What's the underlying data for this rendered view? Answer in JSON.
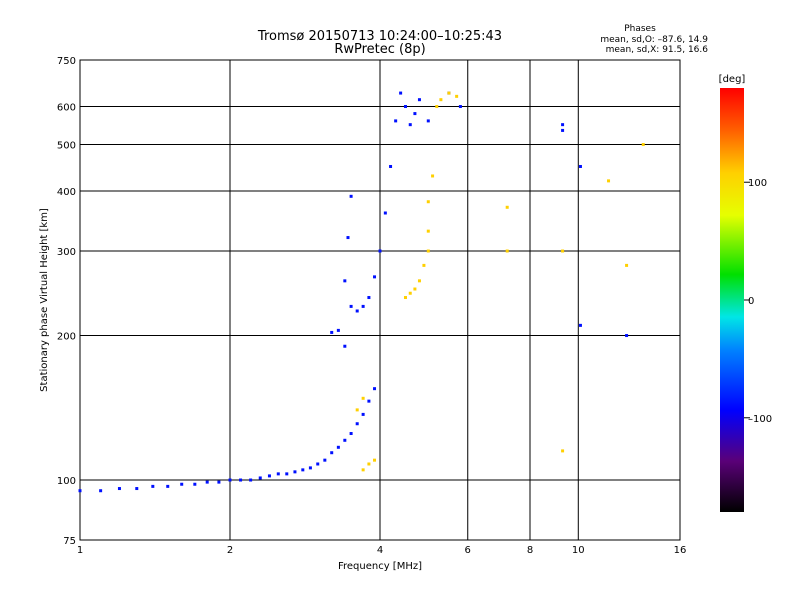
{
  "chart_data": {
    "type": "scatter",
    "title": "Tromsø 20150713 10:24:00–10:25:43",
    "subtitle": "RwPretec (8p)",
    "stats": {
      "heading": "Phases",
      "line1": "mean, sd,O: –87.6, 14.9",
      "line2": "mean, sd,X:  91.5, 16.6"
    },
    "xlabel": "Frequency [MHz]",
    "ylabel": "Stationary phase Virtual Height [km]",
    "xscale": "log",
    "yscale": "log",
    "xlim": [
      1,
      16
    ],
    "ylim": [
      75,
      750
    ],
    "xticks": [
      1,
      2,
      4,
      6,
      8,
      10,
      16
    ],
    "xtick_labels": [
      "1",
      "2",
      "4",
      "6",
      "8",
      "10",
      "16"
    ],
    "yticks": [
      75,
      100,
      200,
      300,
      400,
      500,
      600,
      750
    ],
    "ytick_labels": [
      "75",
      "100",
      "200",
      "300",
      "400",
      "500",
      "600",
      "750"
    ],
    "grid": true,
    "colorbar": {
      "label": "[deg]",
      "range": [
        -180,
        180
      ],
      "ticks": [
        100,
        0,
        -100
      ],
      "tick_labels": [
        "100",
        "0",
        "–100"
      ]
    },
    "series": [
      {
        "mode": "O",
        "phase_deg": -95,
        "points": [
          [
            1.0,
            95
          ],
          [
            1.1,
            95
          ],
          [
            1.2,
            96
          ],
          [
            1.3,
            96
          ],
          [
            1.4,
            97
          ],
          [
            1.5,
            97
          ],
          [
            1.6,
            98
          ],
          [
            1.7,
            98
          ],
          [
            1.8,
            99
          ],
          [
            1.9,
            99
          ],
          [
            2.0,
            100
          ],
          [
            2.1,
            100
          ],
          [
            2.2,
            100
          ],
          [
            2.3,
            101
          ],
          [
            2.4,
            102
          ],
          [
            2.5,
            103
          ],
          [
            2.6,
            103
          ],
          [
            2.7,
            104
          ],
          [
            2.8,
            105
          ],
          [
            2.9,
            106
          ],
          [
            3.0,
            108
          ],
          [
            3.1,
            110
          ],
          [
            3.2,
            114
          ],
          [
            3.3,
            117
          ],
          [
            3.4,
            121
          ],
          [
            3.5,
            125
          ],
          [
            3.6,
            131
          ],
          [
            3.7,
            137
          ],
          [
            3.8,
            146
          ],
          [
            3.9,
            155
          ],
          [
            3.3,
            205
          ],
          [
            3.2,
            203
          ],
          [
            3.4,
            190
          ],
          [
            3.4,
            260
          ],
          [
            3.45,
            320
          ],
          [
            3.5,
            390
          ],
          [
            3.5,
            230
          ],
          [
            3.6,
            225
          ],
          [
            3.7,
            230
          ],
          [
            3.8,
            240
          ],
          [
            3.9,
            265
          ],
          [
            4.0,
            300
          ],
          [
            4.1,
            360
          ],
          [
            4.2,
            450
          ],
          [
            4.3,
            560
          ],
          [
            4.4,
            640
          ],
          [
            4.5,
            600
          ],
          [
            4.6,
            550
          ],
          [
            4.7,
            580
          ],
          [
            4.8,
            620
          ],
          [
            5.0,
            560
          ],
          [
            5.5,
            640
          ],
          [
            5.8,
            600
          ],
          [
            9.3,
            550
          ],
          [
            9.3,
            535
          ],
          [
            10.1,
            450
          ],
          [
            10.1,
            210
          ],
          [
            12.5,
            200
          ]
        ]
      },
      {
        "mode": "X",
        "phase_deg": 110,
        "points": [
          [
            3.7,
            105
          ],
          [
            3.8,
            108
          ],
          [
            3.9,
            110
          ],
          [
            3.6,
            140
          ],
          [
            3.7,
            148
          ],
          [
            4.5,
            240
          ],
          [
            4.6,
            245
          ],
          [
            4.7,
            250
          ],
          [
            4.8,
            260
          ],
          [
            4.9,
            280
          ],
          [
            5.0,
            300
          ],
          [
            5.0,
            330
          ],
          [
            5.0,
            380
          ],
          [
            5.1,
            430
          ],
          [
            5.2,
            600
          ],
          [
            5.3,
            620
          ],
          [
            5.5,
            640
          ],
          [
            5.7,
            630
          ],
          [
            7.2,
            370
          ],
          [
            7.2,
            300
          ],
          [
            9.3,
            300
          ],
          [
            9.3,
            115
          ],
          [
            11.5,
            420
          ],
          [
            12.5,
            280
          ],
          [
            13.5,
            500
          ]
        ]
      }
    ]
  }
}
